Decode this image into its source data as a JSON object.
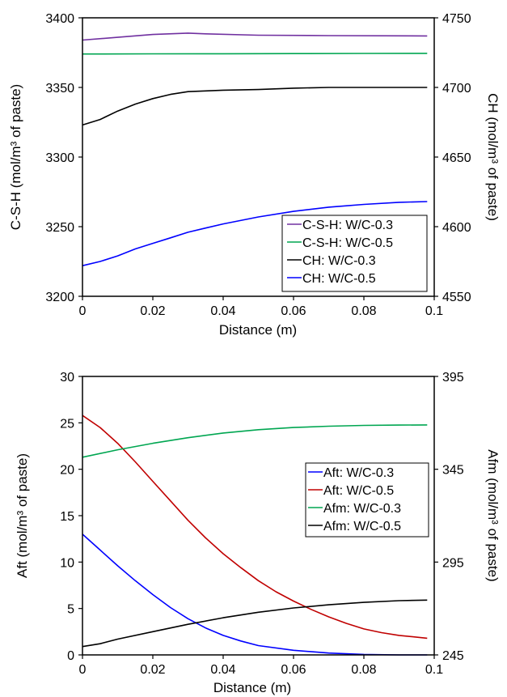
{
  "chart_data": [
    {
      "type": "line",
      "xlabel": "Distance (m)",
      "ylabel_left": "C-S-H (mol/m³ of paste)",
      "ylabel_right": "CH (mol/m³ of paste)",
      "xlim": [
        0,
        0.1
      ],
      "ylim_left": [
        3200,
        3400
      ],
      "ylim_right": [
        4550,
        4750
      ],
      "x_ticks": [
        "0",
        "0.02",
        "0.04",
        "0.06",
        "0.08",
        "0.1"
      ],
      "y_left_ticks": [
        "3200",
        "3250",
        "3300",
        "3350",
        "3400"
      ],
      "y_right_ticks": [
        "4550",
        "4600",
        "4650",
        "4700",
        "4750"
      ],
      "grid": false,
      "legend_position": "bottom-right",
      "series": [
        {
          "name": "C-S-H: W/C-0.3",
          "axis": "left",
          "color": "#7030a0",
          "x": [
            0,
            0.01,
            0.02,
            0.03,
            0.035,
            0.05,
            0.07,
            0.098
          ],
          "y": [
            3384,
            3386,
            3388,
            3389,
            3388.5,
            3387.5,
            3387.2,
            3387
          ]
        },
        {
          "name": "C-S-H: W/C-0.5",
          "axis": "left",
          "color": "#00a651",
          "x": [
            0,
            0.02,
            0.04,
            0.06,
            0.08,
            0.098
          ],
          "y": [
            3374,
            3374.1,
            3374.2,
            3374.3,
            3374.4,
            3374.5
          ]
        },
        {
          "name": "CH: W/C-0.3",
          "axis": "right",
          "color": "#000000",
          "x": [
            0,
            0.005,
            0.01,
            0.015,
            0.02,
            0.025,
            0.03,
            0.035,
            0.04,
            0.05,
            0.06,
            0.07,
            0.08,
            0.09,
            0.098
          ],
          "y": [
            4673,
            4677,
            4683,
            4688,
            4692,
            4695,
            4697,
            4697.5,
            4698,
            4698.5,
            4699.5,
            4700,
            4700,
            4700,
            4700
          ]
        },
        {
          "name": "CH: W/C-0.5",
          "axis": "right",
          "color": "#0000ff",
          "x": [
            0,
            0.005,
            0.01,
            0.015,
            0.02,
            0.025,
            0.03,
            0.035,
            0.04,
            0.05,
            0.06,
            0.07,
            0.08,
            0.09,
            0.098
          ],
          "y": [
            4572,
            4575,
            4579,
            4584,
            4588,
            4592,
            4596,
            4599,
            4602,
            4607,
            4611,
            4614,
            4616,
            4617.5,
            4618
          ]
        }
      ]
    },
    {
      "type": "line",
      "xlabel": "Distance (m)",
      "ylabel_left": "Aft (mol/m³ of paste)",
      "ylabel_right": "Afm (mol/m³ of paste)",
      "xlim": [
        0,
        0.1
      ],
      "ylim_left": [
        0,
        30
      ],
      "ylim_right": [
        245,
        395
      ],
      "x_ticks": [
        "0",
        "0.02",
        "0.04",
        "0.06",
        "0.08",
        "0.1"
      ],
      "y_left_ticks": [
        "0",
        "5",
        "10",
        "15",
        "20",
        "25",
        "30"
      ],
      "y_right_ticks": [
        "245",
        "295",
        "345",
        "395"
      ],
      "grid": false,
      "legend_position": "right",
      "series": [
        {
          "name": "Aft: W/C-0.3",
          "axis": "left",
          "color": "#0000ff",
          "x": [
            0,
            0.005,
            0.01,
            0.015,
            0.02,
            0.025,
            0.03,
            0.035,
            0.04,
            0.045,
            0.05,
            0.06,
            0.07,
            0.08,
            0.09,
            0.098
          ],
          "y": [
            13,
            11.3,
            9.6,
            8.0,
            6.5,
            5.1,
            3.9,
            2.9,
            2.1,
            1.5,
            1.0,
            0.5,
            0.2,
            0.05,
            0.0,
            0.0
          ]
        },
        {
          "name": "Aft: W/C-0.5",
          "axis": "left",
          "color": "#c00000",
          "x": [
            0,
            0.005,
            0.01,
            0.015,
            0.02,
            0.025,
            0.03,
            0.035,
            0.04,
            0.045,
            0.05,
            0.055,
            0.06,
            0.065,
            0.07,
            0.075,
            0.08,
            0.085,
            0.09,
            0.098
          ],
          "y": [
            25.8,
            24.5,
            22.8,
            20.8,
            18.7,
            16.6,
            14.5,
            12.6,
            10.9,
            9.4,
            8.0,
            6.8,
            5.8,
            4.9,
            4.1,
            3.4,
            2.8,
            2.4,
            2.1,
            1.8
          ]
        },
        {
          "name": "Afm: W/C-0.3",
          "axis": "right",
          "color": "#00a651",
          "x": [
            0,
            0.01,
            0.02,
            0.03,
            0.04,
            0.05,
            0.06,
            0.07,
            0.08,
            0.09,
            0.098
          ],
          "y": [
            351.5,
            355.5,
            359,
            362,
            364.5,
            366.3,
            367.5,
            368.2,
            368.6,
            368.8,
            368.9
          ]
        },
        {
          "name": "Afm: W/C-0.5",
          "axis": "right",
          "color": "#000000",
          "x": [
            0,
            0.005,
            0.01,
            0.02,
            0.03,
            0.04,
            0.05,
            0.06,
            0.07,
            0.08,
            0.09,
            0.098
          ],
          "y": [
            249.5,
            251,
            253.5,
            257.5,
            261.5,
            265,
            268,
            270.3,
            272,
            273.3,
            274.2,
            274.5
          ]
        }
      ]
    }
  ]
}
